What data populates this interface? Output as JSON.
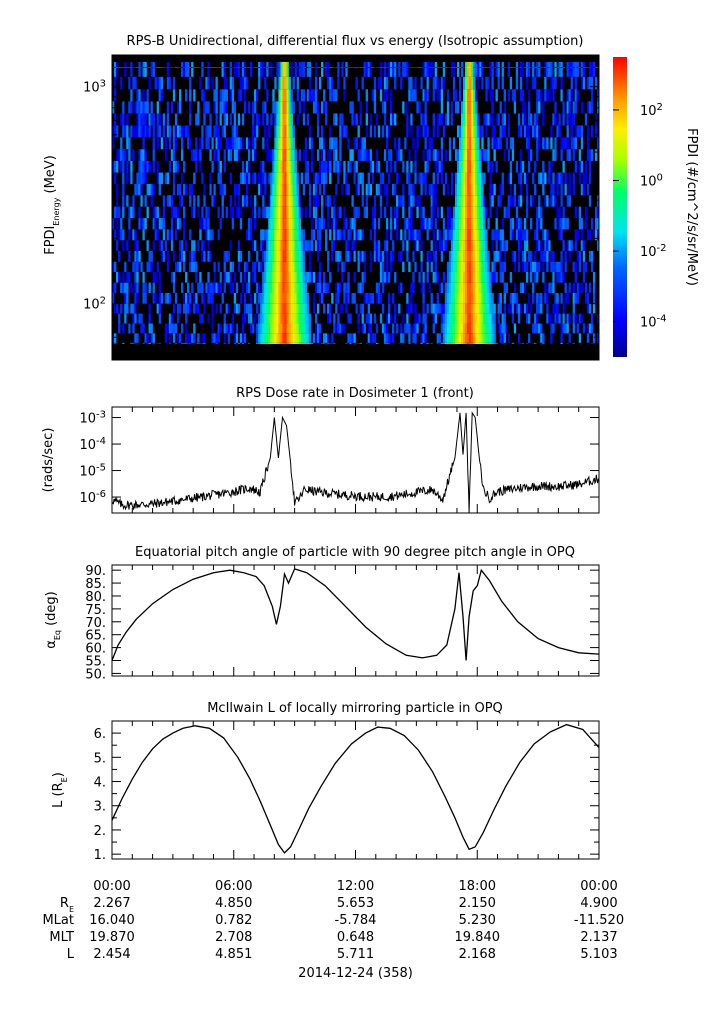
{
  "colors": {
    "axis": "#000000",
    "line": "#000000",
    "background": "#ffffff",
    "spec_bg": "#000000"
  },
  "chart_data": [
    {
      "type": "heatmap",
      "title": "RPS-B  Unidirectional, differential flux vs energy (Isotropic assumption)",
      "ylabel_main": "FPDI",
      "ylabel_sub": "Energy",
      "ylabel_unit": " (MeV)",
      "yscale": "log",
      "ylim": [
        55,
        1400
      ],
      "yticks": [
        {
          "v": 100,
          "base": "10",
          "exp": "2"
        },
        {
          "v": 1000,
          "base": "10",
          "exp": "3"
        }
      ],
      "x_hours": [
        0,
        24
      ],
      "energy_bins": [
        60,
        66,
        73,
        81,
        90,
        100,
        112,
        125,
        140,
        156,
        175,
        196,
        220,
        248,
        280,
        316,
        356,
        402,
        455,
        515,
        584,
        663,
        753,
        856,
        973,
        1110,
        1300
      ],
      "peak_passes_hours": [
        8.5,
        17.6
      ],
      "colorbar": {
        "label": "FPDI (#/cm^2/s/sr/MeV)",
        "log_range": [
          -5,
          3.5
        ],
        "ticks": [
          {
            "base": "10",
            "exp": "-4",
            "v": -4
          },
          {
            "base": "10",
            "exp": "-2",
            "v": -2
          },
          {
            "base": "10",
            "exp": "0",
            "v": 0
          },
          {
            "base": "10",
            "exp": "2",
            "v": 2
          }
        ]
      }
    },
    {
      "type": "line",
      "title": "RPS  Dose rate in Dosimeter 1 (front)",
      "ylabel": "(rads/sec)",
      "yscale": "log",
      "ylim": [
        2.5e-07,
        0.0025
      ],
      "yticks": [
        {
          "v": 1e-06,
          "base": "10",
          "exp": "-6"
        },
        {
          "v": 1e-05,
          "base": "10",
          "exp": "-5"
        },
        {
          "v": 0.0001,
          "base": "10",
          "exp": "-4"
        },
        {
          "v": 0.001,
          "base": "10",
          "exp": "-3"
        }
      ],
      "x_hours": [
        0,
        0.5,
        1,
        2,
        3,
        4,
        5,
        6,
        6.8,
        7.3,
        7.8,
        8.0,
        8.2,
        8.4,
        8.6,
        8.8,
        9.0,
        9.2,
        9.5,
        10,
        11,
        12,
        13,
        14,
        15,
        15.8,
        16.3,
        16.9,
        17.15,
        17.3,
        17.45,
        17.6,
        17.75,
        17.9,
        18.1,
        18.3,
        18.6,
        19,
        20,
        21,
        22,
        23,
        24
      ],
      "y": [
        8e-07,
        5e-07,
        5e-07,
        5.5e-07,
        7e-07,
        9e-07,
        1.2e-06,
        1.6e-06,
        2.2e-06,
        1.5e-06,
        3e-05,
        0.001,
        3e-05,
        0.001,
        0.0005,
        2e-05,
        6e-07,
        8e-07,
        2e-06,
        1.6e-06,
        1.3e-06,
        1.1e-06,
        1e-06,
        1.1e-06,
        1.5e-06,
        1.9e-06,
        8e-07,
        3e-05,
        0.0015,
        4e-05,
        0.0015,
        3e-07,
        0.0015,
        0.001,
        3e-05,
        2e-06,
        9e-07,
        1.6e-06,
        2.2e-06,
        2.6e-06,
        2.5e-06,
        3e-06,
        5e-06
      ]
    },
    {
      "type": "line",
      "title": "Equatorial pitch angle of particle with 90 degree pitch angle in OPQ",
      "ylabel_main": "α",
      "ylabel_sub": "Eq",
      "ylabel_unit": " (deg)",
      "ylim": [
        49,
        92
      ],
      "yticks": [
        50,
        55,
        60,
        65,
        70,
        75,
        80,
        85,
        90
      ],
      "ytick_labels": [
        "50.",
        "55.",
        "60.",
        "65.",
        "70.",
        "75.",
        "80.",
        "85.",
        "90."
      ],
      "x_hours": [
        0,
        0.3,
        0.7,
        1.2,
        2,
        3,
        4,
        5,
        5.8,
        6.5,
        7.1,
        7.5,
        7.9,
        8.1,
        8.3,
        8.5,
        8.7,
        9.0,
        9.6,
        10.5,
        11.5,
        12.5,
        13.5,
        14.5,
        15.3,
        16,
        16.5,
        16.9,
        17.1,
        17.3,
        17.45,
        17.6,
        17.8,
        18.0,
        18.2,
        18.6,
        19.2,
        20,
        21,
        22,
        23,
        24
      ],
      "y": [
        55,
        61,
        66,
        71,
        77,
        82.5,
        86.5,
        89,
        90,
        89,
        87.5,
        84,
        76,
        69,
        76,
        88.5,
        85,
        90.5,
        89,
        84,
        76,
        68,
        61.5,
        57,
        56,
        57,
        61,
        75,
        89,
        72,
        55,
        72,
        82,
        84,
        90,
        86,
        78,
        70,
        63.5,
        60,
        58,
        57.5
      ]
    },
    {
      "type": "line",
      "title": "McIlwain L of locally mirroring particle in OPQ",
      "ylabel_main": "L (R",
      "ylabel_sub": "E",
      "ylabel_unit": ")",
      "ylim": [
        0.8,
        6.5
      ],
      "yticks": [
        1,
        2,
        3,
        4,
        5,
        6
      ],
      "ytick_labels": [
        "1.",
        "2.",
        "3.",
        "4.",
        "5.",
        "6."
      ],
      "x_hours": [
        0,
        0.5,
        1,
        1.5,
        2,
        2.5,
        3,
        3.5,
        4.1,
        4.8,
        5.5,
        6.2,
        6.8,
        7.3,
        7.8,
        8.2,
        8.5,
        8.8,
        9.2,
        9.7,
        10.3,
        11,
        11.8,
        12.5,
        13.1,
        13.7,
        14.4,
        15.1,
        15.8,
        16.4,
        16.9,
        17.3,
        17.6,
        17.9,
        18.3,
        18.8,
        19.4,
        20.1,
        20.8,
        21.6,
        22.4,
        23.2,
        24
      ],
      "y": [
        2.4,
        3.3,
        4.1,
        4.8,
        5.35,
        5.75,
        6.0,
        6.2,
        6.3,
        6.2,
        5.8,
        5.0,
        4.1,
        3.2,
        2.2,
        1.4,
        1.05,
        1.3,
        2.0,
        2.9,
        3.8,
        4.75,
        5.55,
        6.0,
        6.25,
        6.2,
        5.9,
        5.3,
        4.4,
        3.4,
        2.5,
        1.7,
        1.2,
        1.3,
        1.9,
        2.8,
        3.8,
        4.8,
        5.55,
        6.05,
        6.35,
        6.15,
        5.4
      ]
    }
  ],
  "time_axis": {
    "tick_labels": [
      "00:00",
      "06:00",
      "12:00",
      "18:00",
      "00:00"
    ],
    "date_label": "2014-12-24 (358)"
  },
  "ephemeris": [
    {
      "label_main": "R",
      "label_sub": "E",
      "values": [
        "2.267",
        "4.850",
        "5.653",
        "2.150",
        "4.900"
      ]
    },
    {
      "label_main": "MLat",
      "label_sub": "",
      "values": [
        "16.040",
        "0.782",
        "-5.784",
        "5.230",
        "-11.520"
      ]
    },
    {
      "label_main": "MLT",
      "label_sub": "",
      "values": [
        "19.870",
        "2.708",
        "0.648",
        "19.840",
        "2.137"
      ]
    },
    {
      "label_main": "L",
      "label_sub": "",
      "values": [
        "2.454",
        "4.851",
        "5.711",
        "2.168",
        "5.103"
      ]
    }
  ]
}
